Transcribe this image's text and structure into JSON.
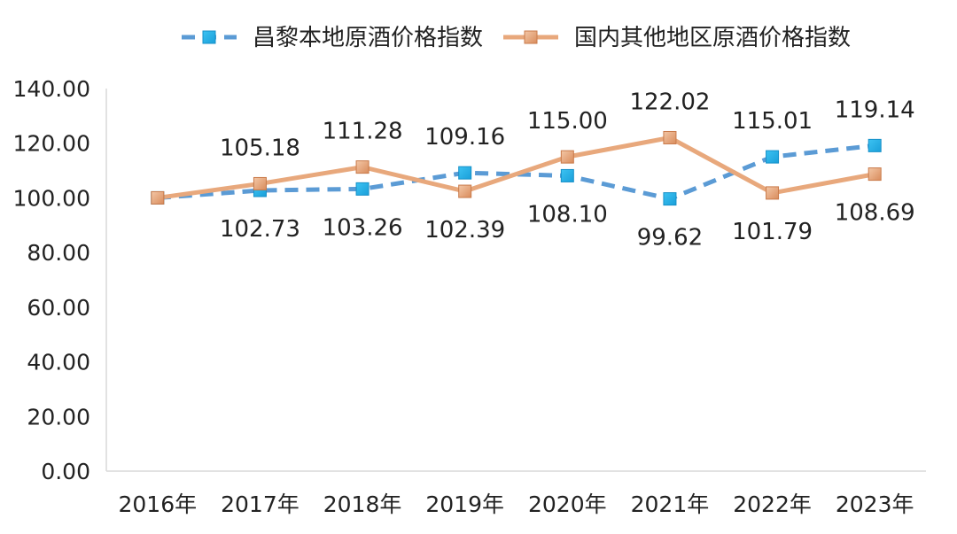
{
  "chart_data": {
    "type": "line",
    "categories": [
      "2016年",
      "2017年",
      "2018年",
      "2019年",
      "2020年",
      "2021年",
      "2022年",
      "2023年"
    ],
    "y_ticks": [
      "0.00",
      "20.00",
      "40.00",
      "60.00",
      "80.00",
      "100.00",
      "120.00",
      "140.00"
    ],
    "ylim": [
      0,
      140
    ],
    "grid": false,
    "legend_position": "top",
    "series": [
      {
        "name": "昌黎本地原酒价格指数",
        "values": [
          100.0,
          102.73,
          103.26,
          109.16,
          108.1,
          99.62,
          115.01,
          119.14
        ],
        "labels": [
          "",
          "102.73",
          "103.26",
          "109.16",
          "108.10",
          "99.62",
          "115.01",
          "119.14"
        ],
        "color": "#5b9bd5",
        "marker_color": "#1eaee8",
        "line_style": "dashed",
        "marker": "square"
      },
      {
        "name": "国内其他地区原酒价格指数",
        "values": [
          100.0,
          105.18,
          111.28,
          102.39,
          115.0,
          122.02,
          101.79,
          108.69
        ],
        "labels": [
          "",
          "105.18",
          "111.28",
          "102.39",
          "115.00",
          "122.02",
          "101.79",
          "108.69"
        ],
        "color": "#e8a87c",
        "marker_color": "#e8a87c",
        "line_style": "solid",
        "marker": "square"
      }
    ]
  }
}
